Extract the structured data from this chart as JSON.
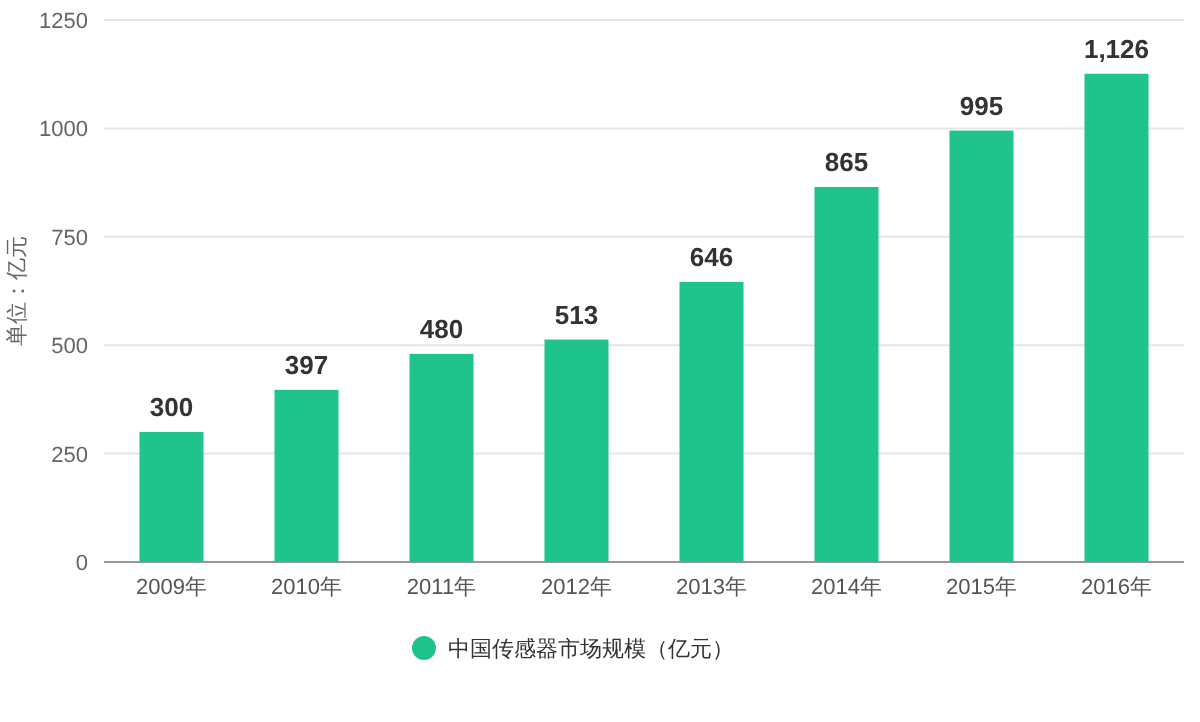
{
  "chart_data": {
    "type": "bar",
    "ylabel": "单位：亿元",
    "categories": [
      "2009年",
      "2010年",
      "2011年",
      "2012年",
      "2013年",
      "2014年",
      "2015年",
      "2016年"
    ],
    "series": [
      {
        "name": "中国传感器市场规模（亿元）",
        "color": "#1fc48c",
        "values": [
          300,
          397,
          480,
          513,
          646,
          865,
          995,
          1126
        ],
        "value_labels": [
          "300",
          "397",
          "480",
          "513",
          "646",
          "865",
          "995",
          "1,126"
        ]
      }
    ],
    "ylim": [
      0,
      1250
    ],
    "yticks": [
      0,
      250,
      500,
      750,
      1000,
      1250
    ],
    "grid": "y",
    "legend": "bottom"
  }
}
